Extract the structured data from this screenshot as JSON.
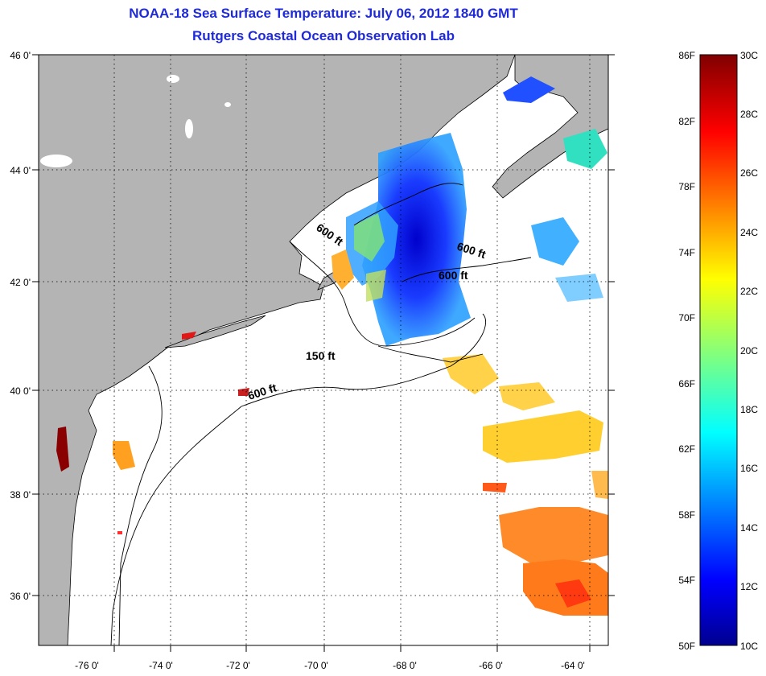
{
  "title": "NOAA-18 Sea Surface Temperature:  July 06, 2012 1840 GMT",
  "subtitle": "Rutgers Coastal Ocean Observation Lab",
  "map": {
    "lat_labels": [
      "46 0'",
      "44 0'",
      "42 0'",
      "40 0'",
      "38 0'",
      "36 0'"
    ],
    "lon_labels": [
      "-76 0'",
      "-74 0'",
      "-72 0'",
      "-70 0'",
      "-68 0'",
      "-66 0'",
      "-64 0'"
    ],
    "lat_range": [
      35,
      46
    ],
    "lon_range": [
      -77,
      -63
    ],
    "land_color": "#b4b4b4",
    "gridlines": "dotted",
    "contour_labels": [
      "600 ft",
      "600 ft",
      "600 ft",
      "150 ft",
      "600 ft"
    ]
  },
  "colorbar": {
    "f_labels": [
      "86F",
      "82F",
      "78F",
      "74F",
      "70F",
      "66F",
      "62F",
      "58F",
      "54F",
      "50F"
    ],
    "c_labels": [
      "30C",
      "28C",
      "26C",
      "24C",
      "22C",
      "20C",
      "18C",
      "16C",
      "14C",
      "12C",
      "10C"
    ],
    "min_c": 10,
    "max_c": 30,
    "colormap": "jet"
  }
}
